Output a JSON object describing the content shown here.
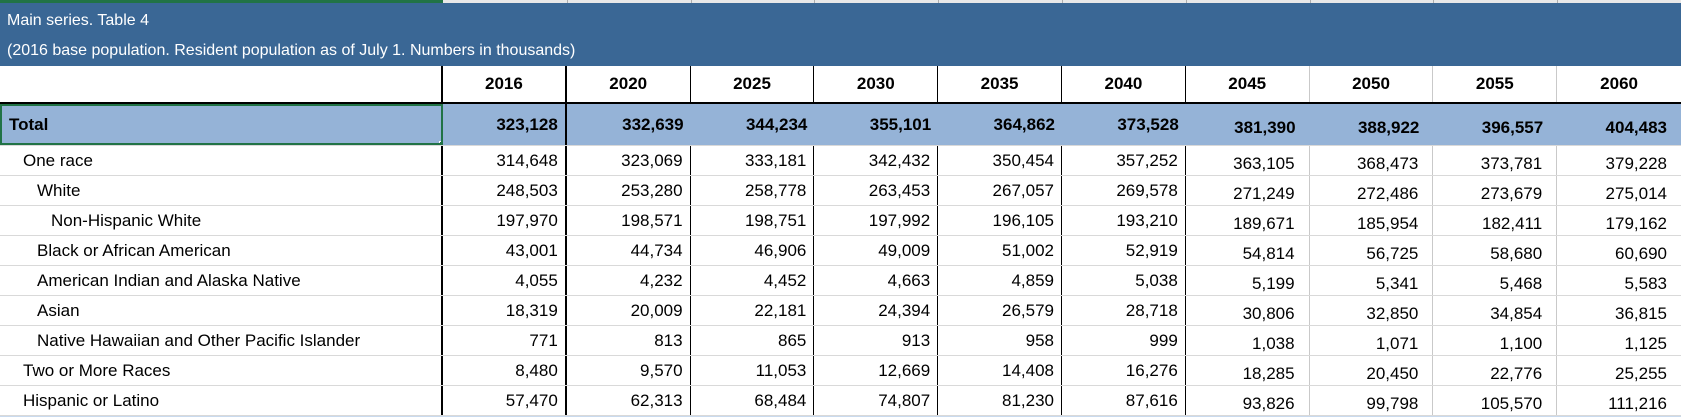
{
  "title": {
    "line1": "Main series. Table 4",
    "line2": "(2016 base population. Resident population as of July 1. Numbers in thousands)"
  },
  "excel": {
    "selected_cell": "Total",
    "selection_color": "#217346",
    "selected_column_highlight": "column-A-header-underline"
  },
  "colors": {
    "title_band": "#3A6795",
    "title_text": "#FFFFFF",
    "total_row_fill": "#95B3D7",
    "next_row_partial_fill": "#C9DAEE",
    "gridline_light": "#D9D9D9",
    "border_dark": "#000000"
  },
  "table": {
    "years": [
      "2016",
      "2020",
      "2025",
      "2030",
      "2035",
      "2040",
      "2045",
      "2050",
      "2055",
      "2060"
    ],
    "rows": [
      {
        "label": "Total",
        "indent": 0,
        "bold": true,
        "highlight": true,
        "selected": true,
        "values": [
          "323,128",
          "332,639",
          "344,234",
          "355,101",
          "364,862",
          "373,528",
          "381,390",
          "388,922",
          "396,557",
          "404,483"
        ]
      },
      {
        "label": "One race",
        "indent": 1,
        "bold": false,
        "highlight": false,
        "selected": false,
        "values": [
          "314,648",
          "323,069",
          "333,181",
          "342,432",
          "350,454",
          "357,252",
          "363,105",
          "368,473",
          "373,781",
          "379,228"
        ]
      },
      {
        "label": "White",
        "indent": 2,
        "bold": false,
        "highlight": false,
        "selected": false,
        "values": [
          "248,503",
          "253,280",
          "258,778",
          "263,453",
          "267,057",
          "269,578",
          "271,249",
          "272,486",
          "273,679",
          "275,014"
        ]
      },
      {
        "label": "Non-Hispanic White",
        "indent": 3,
        "bold": false,
        "highlight": false,
        "selected": false,
        "values": [
          "197,970",
          "198,571",
          "198,751",
          "197,992",
          "196,105",
          "193,210",
          "189,671",
          "185,954",
          "182,411",
          "179,162"
        ]
      },
      {
        "label": "Black or African American",
        "indent": 2,
        "bold": false,
        "highlight": false,
        "selected": false,
        "values": [
          "43,001",
          "44,734",
          "46,906",
          "49,009",
          "51,002",
          "52,919",
          "54,814",
          "56,725",
          "58,680",
          "60,690"
        ]
      },
      {
        "label": "American Indian and Alaska Native",
        "indent": 2,
        "bold": false,
        "highlight": false,
        "selected": false,
        "values": [
          "4,055",
          "4,232",
          "4,452",
          "4,663",
          "4,859",
          "5,038",
          "5,199",
          "5,341",
          "5,468",
          "5,583"
        ]
      },
      {
        "label": "Asian",
        "indent": 2,
        "bold": false,
        "highlight": false,
        "selected": false,
        "values": [
          "18,319",
          "20,009",
          "22,181",
          "24,394",
          "26,579",
          "28,718",
          "30,806",
          "32,850",
          "34,854",
          "36,815"
        ]
      },
      {
        "label": "Native Hawaiian and Other Pacific Islander",
        "indent": 2,
        "bold": false,
        "highlight": false,
        "selected": false,
        "values": [
          "771",
          "813",
          "865",
          "913",
          "958",
          "999",
          "1,038",
          "1,071",
          "1,100",
          "1,125"
        ]
      },
      {
        "label": "Two or More Races",
        "indent": 1,
        "bold": false,
        "highlight": false,
        "selected": false,
        "values": [
          "8,480",
          "9,570",
          "11,053",
          "12,669",
          "14,408",
          "16,276",
          "18,285",
          "20,450",
          "22,776",
          "25,255"
        ]
      },
      {
        "label": "Hispanic or Latino",
        "indent": 1,
        "bold": false,
        "highlight": false,
        "selected": false,
        "values": [
          "57,470",
          "62,313",
          "68,484",
          "74,807",
          "81,230",
          "87,616",
          "93,826",
          "99,798",
          "105,570",
          "111,216"
        ]
      }
    ]
  }
}
